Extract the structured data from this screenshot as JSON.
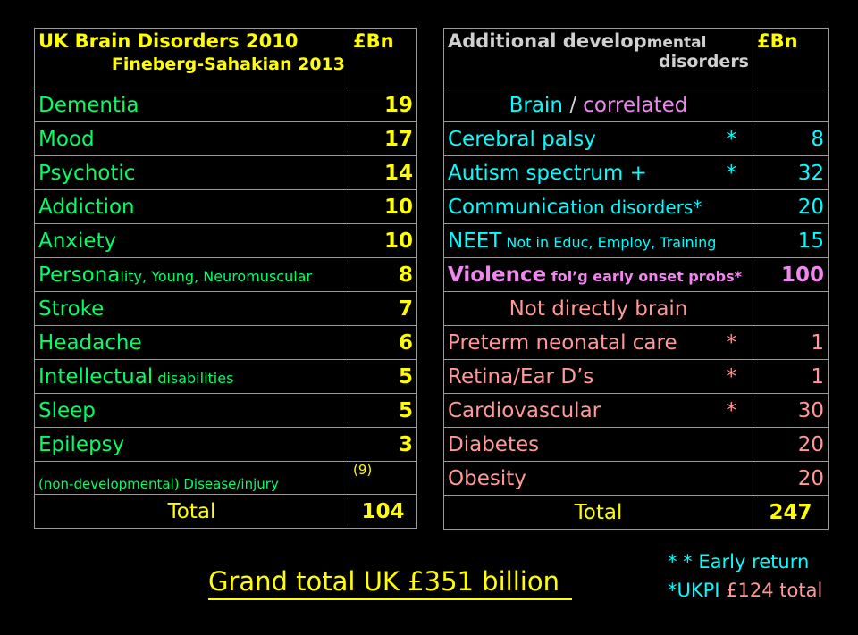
{
  "left_table": {
    "title": "UK Brain Disorders 2010",
    "subtitle": "Fineberg-Sahakian 2013",
    "unit": "£Bn",
    "rows": [
      {
        "main": "Dementia",
        "small": "",
        "value": "19"
      },
      {
        "main": "Mood",
        "small": "",
        "value": "17"
      },
      {
        "main": "Psychotic",
        "small": "",
        "value": "14"
      },
      {
        "main": "Addiction",
        "small": "",
        "value": "10"
      },
      {
        "main": "Anxiety",
        "small": "",
        "value": "10"
      },
      {
        "main": "Persona",
        "small": "lity, Young, Neuromuscular",
        "value": "8"
      },
      {
        "main": "Stroke",
        "small": "",
        "value": "7"
      },
      {
        "main": "Headache",
        "small": "",
        "value": "6"
      },
      {
        "main": "Intellectual",
        "small": " disabilities",
        "value": "5"
      },
      {
        "main": "Sleep",
        "small": "",
        "value": "5"
      },
      {
        "main": "Epilepsy",
        "small": "",
        "value": "3"
      }
    ],
    "footnote_label": "(non-developmental)  Disease/injury",
    "footnote_value": "(9)",
    "total_label": "Total",
    "total_value": "104"
  },
  "right_table": {
    "title_big": "Additional develop",
    "title_small": "mental",
    "title_line2": "disorders",
    "unit": "£Bn",
    "section1_brain": "Brain",
    "section1_sep": " / ",
    "section1_corr": "correlated",
    "rows1": [
      {
        "main": "Cerebral palsy",
        "small": "",
        "star": "*",
        "value": "8"
      },
      {
        "main": "Autism spectrum +",
        "small": "",
        "star": "*",
        "value": "32"
      },
      {
        "main": "Communica",
        "small": "tion disorders*",
        "star": "",
        "value": "20"
      },
      {
        "main": "NEET",
        "small": " Not in Educ, Employ, Training",
        "star": "",
        "value": "15"
      }
    ],
    "violence_main": "Violence",
    "violence_small": " fol’g early onset probs*",
    "violence_value": "100",
    "section2": "Not directly brain",
    "rows2": [
      {
        "main": "Preterm neonatal care",
        "star": "*",
        "value": "1"
      },
      {
        "main": "Retina/Ear  D’s",
        "star": "*",
        "value": "1"
      },
      {
        "main": "Cardiovascular",
        "star": "*",
        "value": "30"
      },
      {
        "main": "Diabetes",
        "star": "",
        "value": "20"
      },
      {
        "main": "Obesity",
        "star": "",
        "value": "20"
      }
    ],
    "total_label": "Total",
    "total_value": "247"
  },
  "grand_total": "Grand total UK £351 billion",
  "notes": {
    "line1": "* * Early return",
    "line2_cyan": "*UKPI ",
    "line2_pink": "£124 total"
  }
}
